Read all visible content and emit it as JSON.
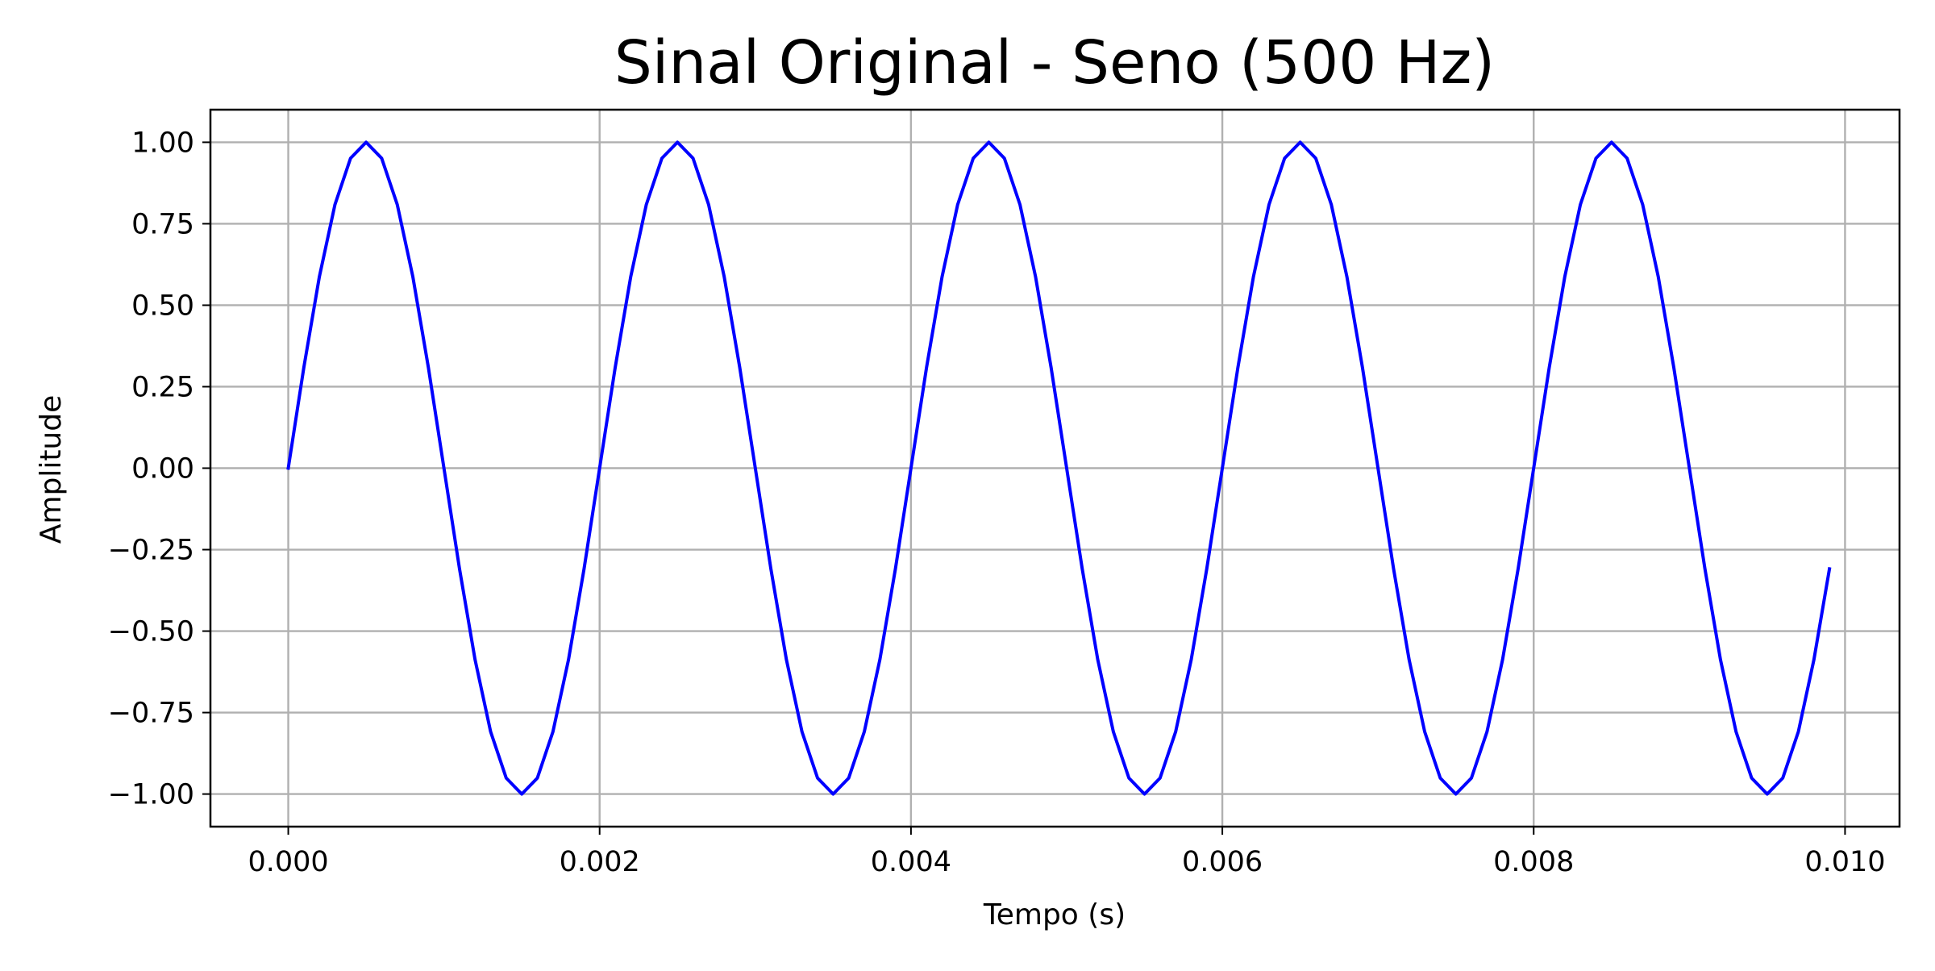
{
  "chart_data": {
    "type": "line",
    "title": "Sinal Original - Seno (500 Hz)",
    "xlabel": "Tempo (s)",
    "ylabel": "Amplitude",
    "xlim": [
      -0.0005,
      0.01035
    ],
    "ylim": [
      -1.1,
      1.1
    ],
    "grid": true,
    "x_ticks": [
      0.0,
      0.002,
      0.004,
      0.006,
      0.008,
      0.01
    ],
    "x_tick_labels": [
      "0.000",
      "0.002",
      "0.004",
      "0.006",
      "0.008",
      "0.010"
    ],
    "y_ticks": [
      1.0,
      0.75,
      0.5,
      0.25,
      0.0,
      -0.25,
      -0.5,
      -0.75,
      -1.0
    ],
    "y_tick_labels": [
      "1.00",
      "0.75",
      "0.50",
      "0.25",
      "0.00",
      "−0.25",
      "−0.50",
      "−0.75",
      "−1.00"
    ],
    "series": [
      {
        "color": "#0000ff",
        "x": [
          0.0,
          0.0001,
          0.0002,
          0.0003,
          0.0004,
          0.0005,
          0.0006,
          0.0007,
          0.0008,
          0.0009,
          0.001,
          0.0011,
          0.0012,
          0.0013,
          0.0014,
          0.0015,
          0.0016,
          0.0017,
          0.0018,
          0.0019,
          0.002,
          0.0021,
          0.0022,
          0.0023,
          0.0024,
          0.0025,
          0.0026,
          0.0027,
          0.0028,
          0.0029,
          0.003,
          0.0031,
          0.0032,
          0.0033,
          0.0034,
          0.0035,
          0.0036,
          0.0037,
          0.0038,
          0.0039,
          0.004,
          0.0041,
          0.0042,
          0.0043,
          0.0044,
          0.0045,
          0.0046,
          0.0047,
          0.0048,
          0.0049,
          0.005,
          0.0051,
          0.0052,
          0.0053,
          0.0054,
          0.0055,
          0.0056,
          0.0057,
          0.0058,
          0.0059,
          0.006,
          0.0061,
          0.0062,
          0.0063,
          0.0064,
          0.0065,
          0.0066,
          0.0067,
          0.0068,
          0.0069,
          0.007,
          0.0071,
          0.0072,
          0.0073,
          0.0074,
          0.0075,
          0.0076,
          0.0077,
          0.0078,
          0.0079,
          0.008,
          0.0081,
          0.0082,
          0.0083,
          0.0084,
          0.0085,
          0.0086,
          0.0087,
          0.0088,
          0.0089,
          0.009,
          0.0091,
          0.0092,
          0.0093,
          0.0094,
          0.0095,
          0.0096,
          0.0097,
          0.0098,
          0.0099
        ],
        "y": [
          0.0,
          0.309,
          0.588,
          0.809,
          0.951,
          1.0,
          0.951,
          0.809,
          0.588,
          0.309,
          0.0,
          -0.309,
          -0.588,
          -0.809,
          -0.951,
          -1.0,
          -0.951,
          -0.809,
          -0.588,
          -0.309,
          0.0,
          0.309,
          0.588,
          0.809,
          0.951,
          1.0,
          0.951,
          0.809,
          0.588,
          0.309,
          0.0,
          -0.309,
          -0.588,
          -0.809,
          -0.951,
          -1.0,
          -0.951,
          -0.809,
          -0.588,
          -0.309,
          0.0,
          0.309,
          0.588,
          0.809,
          0.951,
          1.0,
          0.951,
          0.809,
          0.588,
          0.309,
          0.0,
          -0.309,
          -0.588,
          -0.809,
          -0.951,
          -1.0,
          -0.951,
          -0.809,
          -0.588,
          -0.309,
          0.0,
          0.309,
          0.588,
          0.809,
          0.951,
          1.0,
          0.951,
          0.809,
          0.588,
          0.309,
          0.0,
          -0.309,
          -0.588,
          -0.809,
          -0.951,
          -1.0,
          -0.951,
          -0.809,
          -0.588,
          -0.309,
          0.0,
          0.309,
          0.588,
          0.809,
          0.951,
          1.0,
          0.951,
          0.809,
          0.588,
          0.309,
          0.0,
          -0.309,
          -0.588,
          -0.809,
          -0.951,
          -1.0,
          -0.951,
          -0.809,
          -0.588,
          -0.309
        ]
      }
    ]
  }
}
